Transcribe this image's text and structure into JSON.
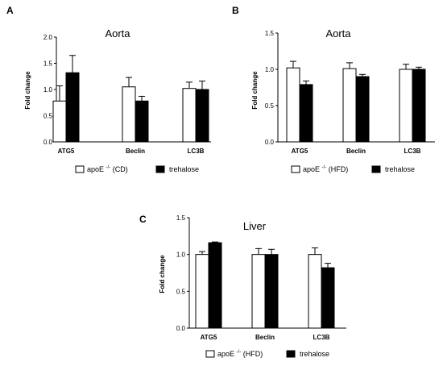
{
  "chart_data": [
    {
      "panel": "A",
      "type": "bar",
      "title": "Aorta",
      "ylabel": "Fold change",
      "categories": [
        "ATG5",
        "Beclin",
        "LC3B"
      ],
      "ylim": [
        0,
        2.0
      ],
      "yticks": [
        "0.0",
        "0.5",
        "1.0",
        "1.5",
        "2.0"
      ],
      "series": [
        {
          "legend_base": "apoE",
          "legend_sup": "-/-",
          "legend_suffix": "(CD)",
          "fill": "#ffffff",
          "values": [
            0.78,
            1.05,
            1.02
          ],
          "errors": [
            0.29,
            0.18,
            0.12
          ]
        },
        {
          "legend_base": "trehalose",
          "legend_sup": "",
          "legend_suffix": "",
          "fill": "#000000",
          "values": [
            1.32,
            0.78,
            1.0
          ],
          "errors": [
            0.33,
            0.09,
            0.16
          ]
        }
      ]
    },
    {
      "panel": "B",
      "type": "bar",
      "title": "Aorta",
      "ylabel": "Fold change",
      "categories": [
        "ATG5",
        "Beclin",
        "LC3B"
      ],
      "ylim": [
        0,
        1.5
      ],
      "yticks": [
        "0.0",
        "0.5",
        "1.0",
        "1.5"
      ],
      "series": [
        {
          "legend_base": "apoE",
          "legend_sup": "-/-",
          "legend_suffix": "(HFD)",
          "fill": "#ffffff",
          "values": [
            1.02,
            1.01,
            1.0
          ],
          "errors": [
            0.09,
            0.08,
            0.07
          ]
        },
        {
          "legend_base": "trehalose",
          "legend_sup": "",
          "legend_suffix": "",
          "fill": "#000000",
          "values": [
            0.79,
            0.9,
            1.0
          ],
          "errors": [
            0.05,
            0.03,
            0.03
          ]
        }
      ]
    },
    {
      "panel": "C",
      "type": "bar",
      "title": "Liver",
      "ylabel": "Fold change",
      "categories": [
        "ATG5",
        "Beclin",
        "LC3B"
      ],
      "ylim": [
        0,
        1.5
      ],
      "yticks": [
        "0.0",
        "0.5",
        "1.0",
        "1.5"
      ],
      "series": [
        {
          "legend_base": "apoE",
          "legend_sup": "-/-",
          "legend_suffix": "(HFD)",
          "fill": "#ffffff",
          "values": [
            1.0,
            1.0,
            1.0
          ],
          "errors": [
            0.04,
            0.08,
            0.09
          ]
        },
        {
          "legend_base": "trehalose",
          "legend_sup": "",
          "legend_suffix": "",
          "fill": "#000000",
          "values": [
            1.16,
            1.0,
            0.82
          ],
          "errors": [
            0.01,
            0.07,
            0.06
          ]
        }
      ]
    }
  ]
}
